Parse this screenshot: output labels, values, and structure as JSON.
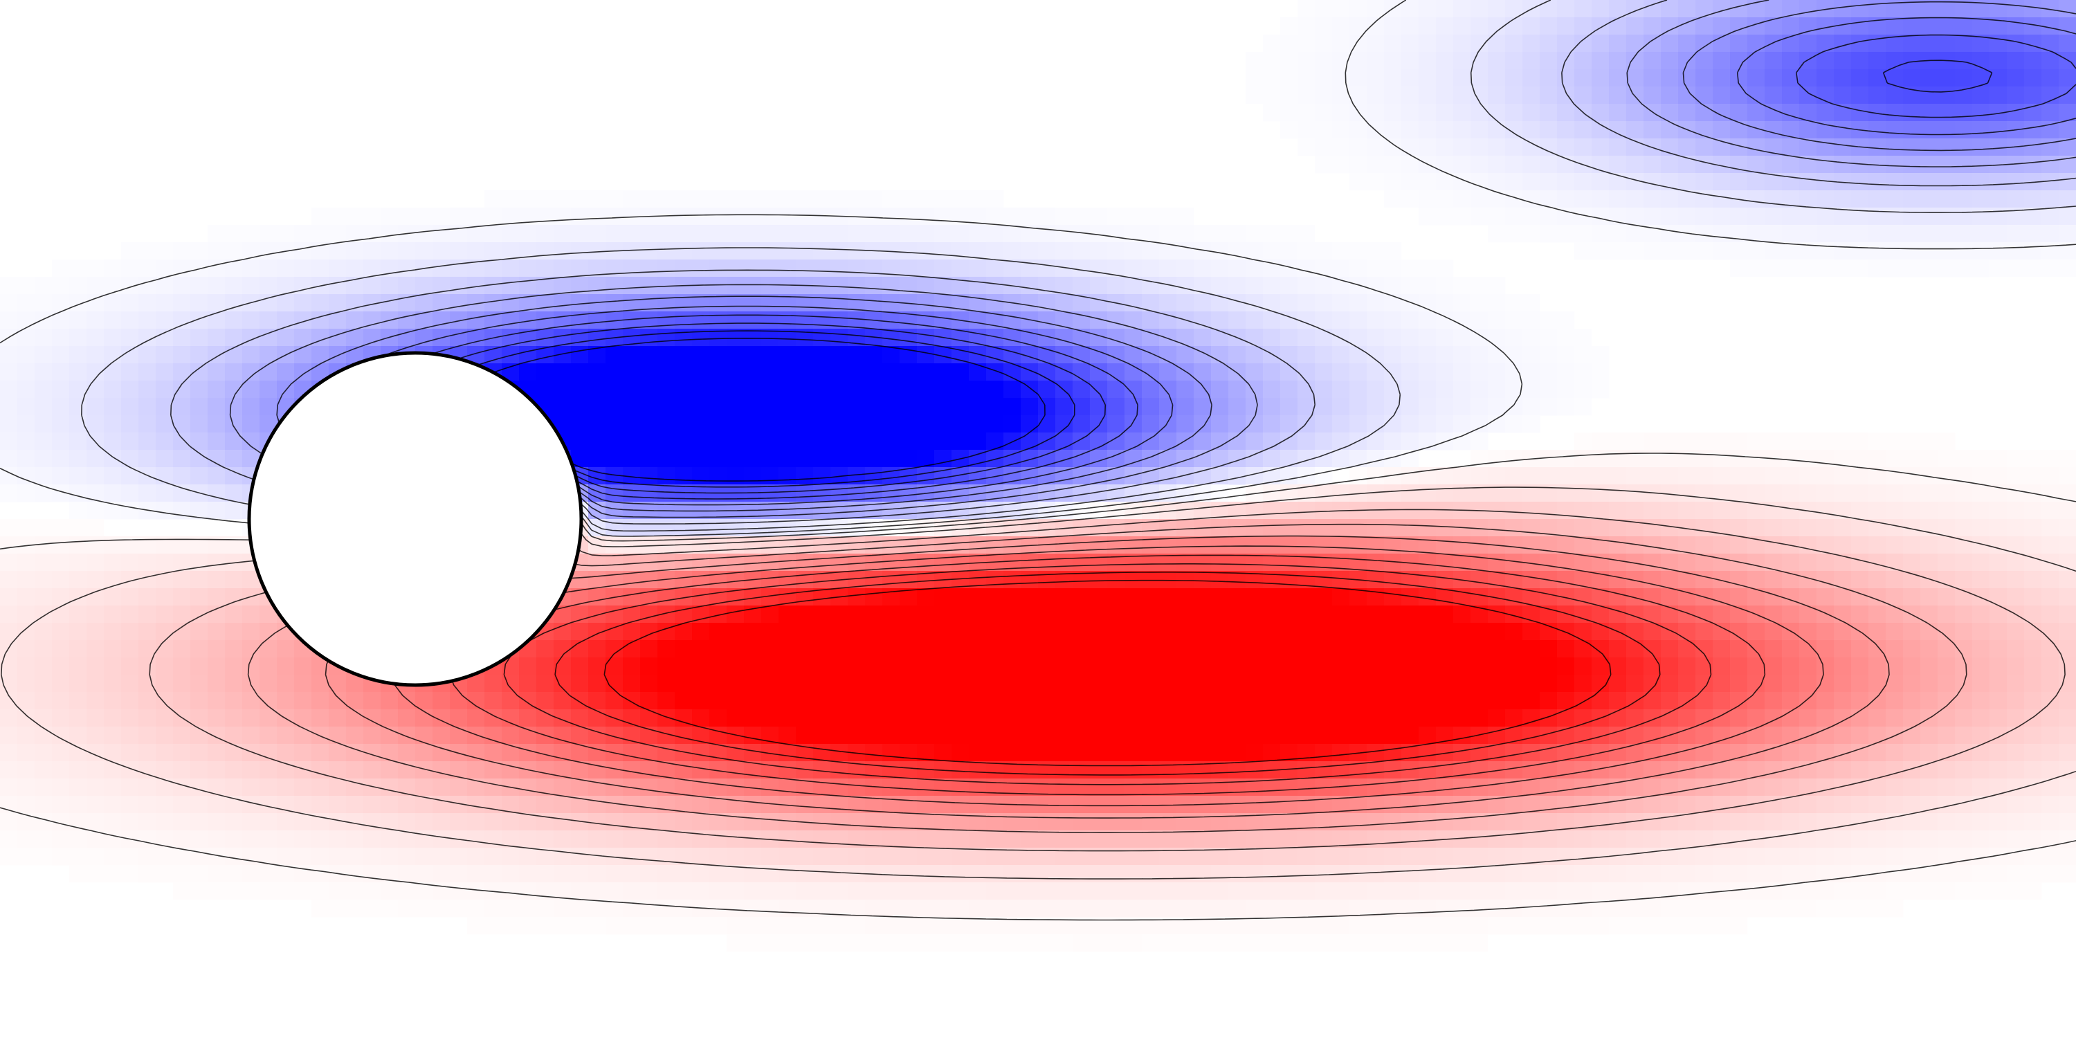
{
  "chart_data": {
    "type": "heatmap",
    "title": "",
    "xlabel": "",
    "ylabel": "",
    "xlim": [
      -1.5,
      6.0
    ],
    "ylim": [
      -1.875,
      1.875
    ],
    "grid": false,
    "legend": "none",
    "colormap": {
      "negative": "#0000ff",
      "zero": "#ffffff",
      "positive": "#ff0000"
    },
    "obstacle": {
      "shape": "circle",
      "center": [
        0.0,
        0.0
      ],
      "radius": 0.6,
      "fill": "#ffffff",
      "outline": "#000000"
    },
    "fields": [
      {
        "name": "",
        "sign": -1,
        "center": [
          1.2,
          0.38
        ],
        "spread": [
          1.45,
          0.36
        ],
        "amplitude": 1.0
      },
      {
        "name": "",
        "sign": 1,
        "center": [
          2.5,
          -0.55
        ],
        "spread": [
          2.4,
          0.45
        ],
        "amplitude": 1.0
      },
      {
        "name": "",
        "sign": -1,
        "center": [
          5.5,
          1.6
        ],
        "spread": [
          1.2,
          0.35
        ],
        "amplitude": 0.45
      },
      {
        "name": "",
        "sign": 1,
        "center": [
          0.45,
          0.03
        ],
        "spread": [
          0.12,
          0.12
        ],
        "amplitude": 0.8
      }
    ],
    "contour_levels": [
      -0.9,
      -0.8,
      -0.7,
      -0.6,
      -0.5,
      -0.4,
      -0.3,
      -0.2,
      -0.1,
      -0.03,
      0.03,
      0.1,
      0.2,
      0.3,
      0.4,
      0.5,
      0.6,
      0.7,
      0.8,
      0.9
    ]
  }
}
